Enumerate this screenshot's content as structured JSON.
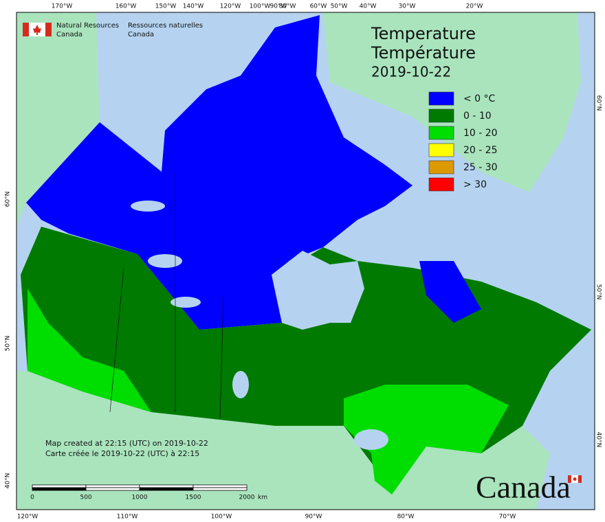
{
  "logo": {
    "en": [
      "Natural Resources",
      "Canada"
    ],
    "fr": [
      "Ressources naturelles",
      "Canada"
    ]
  },
  "title": [
    "Temperature",
    "Température",
    "2019-10-22"
  ],
  "legend": [
    {
      "label": "< 0 °C",
      "color": "#0000ff"
    },
    {
      "label": "0 - 10",
      "color": "#007a00"
    },
    {
      "label": "10 - 20",
      "color": "#00dd00"
    },
    {
      "label": "20 - 25",
      "color": "#ffff00"
    },
    {
      "label": "25 - 30",
      "color": "#dd9900"
    },
    {
      "label": "> 30",
      "color": "#ff0000"
    }
  ],
  "graticule": {
    "top": [
      "170°W",
      "160°W",
      "150°W",
      "140°W",
      "120°W",
      "100°W",
      "90°W",
      "80°W",
      "60°W",
      "50°W",
      "40°W",
      "30°W",
      "20°W"
    ],
    "bottom": [
      "120°W",
      "110°W",
      "100°W",
      "90°W",
      "80°W",
      "70°W"
    ],
    "left": [
      "60°N",
      "50°N",
      "40°N"
    ],
    "right": [
      "60°N",
      "50°N",
      "40°N"
    ]
  },
  "footer": [
    "Map created at 22:15 (UTC) on 2019-10-22",
    "Carte créée le 2019-10-22 (UTC) à 22:15"
  ],
  "scale_bar": {
    "labels": [
      "0",
      "500",
      "1000",
      "1500",
      "2000"
    ],
    "unit": "km"
  },
  "wordmark": "Canada"
}
